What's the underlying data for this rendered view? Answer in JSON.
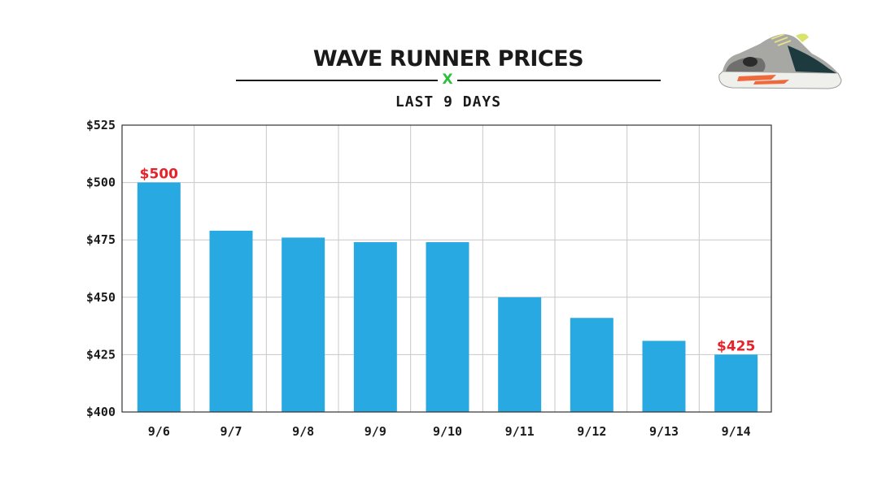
{
  "header": {
    "title": "WAVE RUNNER PRICES",
    "divider_mark": "X",
    "subtitle": "LAST 9 DAYS"
  },
  "image": {
    "icon": "sneaker-product-image"
  },
  "colors": {
    "bar": "#29a9e1",
    "label": "#e8222a",
    "accent": "#2fbf3c",
    "grid": "#c8c8c8",
    "frame": "#333333"
  },
  "chart_data": {
    "type": "bar",
    "title": "WAVE RUNNER PRICES",
    "subtitle": "LAST 9 DAYS",
    "categories": [
      "9/6",
      "9/7",
      "9/8",
      "9/9",
      "9/10",
      "9/11",
      "9/12",
      "9/13",
      "9/14"
    ],
    "values": [
      500,
      479,
      476,
      474,
      474,
      450,
      441,
      431,
      425
    ],
    "ylim": [
      400,
      525
    ],
    "yticks": [
      400,
      425,
      450,
      475,
      500,
      525
    ],
    "ytick_labels": [
      "$400",
      "$425",
      "$450",
      "$475",
      "$500",
      "$525"
    ],
    "grid": true,
    "data_labels": [
      {
        "category": "9/6",
        "text": "$500"
      },
      {
        "category": "9/14",
        "text": "$425"
      }
    ]
  }
}
